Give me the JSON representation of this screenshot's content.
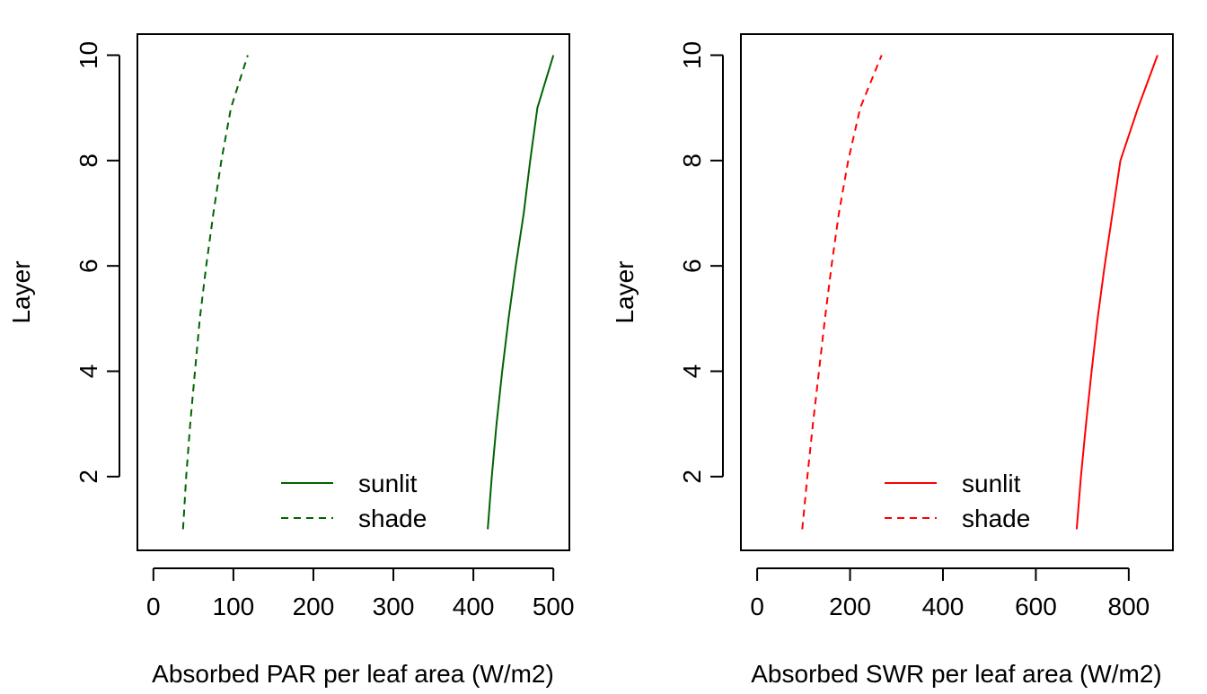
{
  "chart_data": [
    {
      "type": "line",
      "title": "",
      "xlabel": "Absorbed PAR per leaf area (W/m2)",
      "ylabel": "Layer",
      "xlim": [
        -20,
        520
      ],
      "ylim": [
        0.6,
        10.4
      ],
      "xticks": [
        0,
        100,
        200,
        300,
        400,
        500
      ],
      "xtick_labels": [
        "0",
        "100",
        "200",
        "300",
        "400",
        "500"
      ],
      "yticks": [
        2,
        4,
        6,
        8,
        10
      ],
      "ytick_labels": [
        "2",
        "4",
        "6",
        "8",
        "10"
      ],
      "grid": false,
      "legend_position": "bottom",
      "color": "#006400",
      "series": [
        {
          "name": "sunlit",
          "style": "solid",
          "x": [
            418,
            423,
            429,
            436,
            444,
            453,
            463,
            471,
            480,
            500
          ],
          "y": [
            1,
            2,
            3,
            4,
            5,
            6,
            7,
            8,
            9,
            10
          ]
        },
        {
          "name": "shade",
          "style": "dashed",
          "x": [
            37,
            41,
            46,
            52,
            58,
            66,
            75,
            85,
            97,
            118
          ],
          "y": [
            1,
            2,
            3,
            4,
            5,
            6,
            7,
            8,
            9,
            10
          ]
        }
      ]
    },
    {
      "type": "line",
      "title": "",
      "xlabel": "Absorbed SWR per leaf area (W/m2)",
      "ylabel": "Layer",
      "xlim": [
        -35,
        895
      ],
      "ylim": [
        0.6,
        10.4
      ],
      "xticks": [
        0,
        200,
        400,
        600,
        800
      ],
      "xtick_labels": [
        "0",
        "200",
        "400",
        "600",
        "800"
      ],
      "yticks": [
        2,
        4,
        6,
        8,
        10
      ],
      "ytick_labels": [
        "2",
        "4",
        "6",
        "8",
        "10"
      ],
      "grid": false,
      "legend_position": "bottom",
      "color": "#ff0000",
      "series": [
        {
          "name": "sunlit",
          "style": "solid",
          "x": [
            688,
            697,
            708,
            720,
            733,
            748,
            765,
            782,
            820,
            862
          ],
          "y": [
            1,
            2,
            3,
            4,
            5,
            6,
            7,
            8,
            9,
            10
          ]
        },
        {
          "name": "shade",
          "style": "dashed",
          "x": [
            97,
            108,
            120,
            133,
            146,
            160,
            176,
            196,
            222,
            268
          ],
          "y": [
            1,
            2,
            3,
            4,
            5,
            6,
            7,
            8,
            9,
            10
          ]
        }
      ]
    }
  ]
}
